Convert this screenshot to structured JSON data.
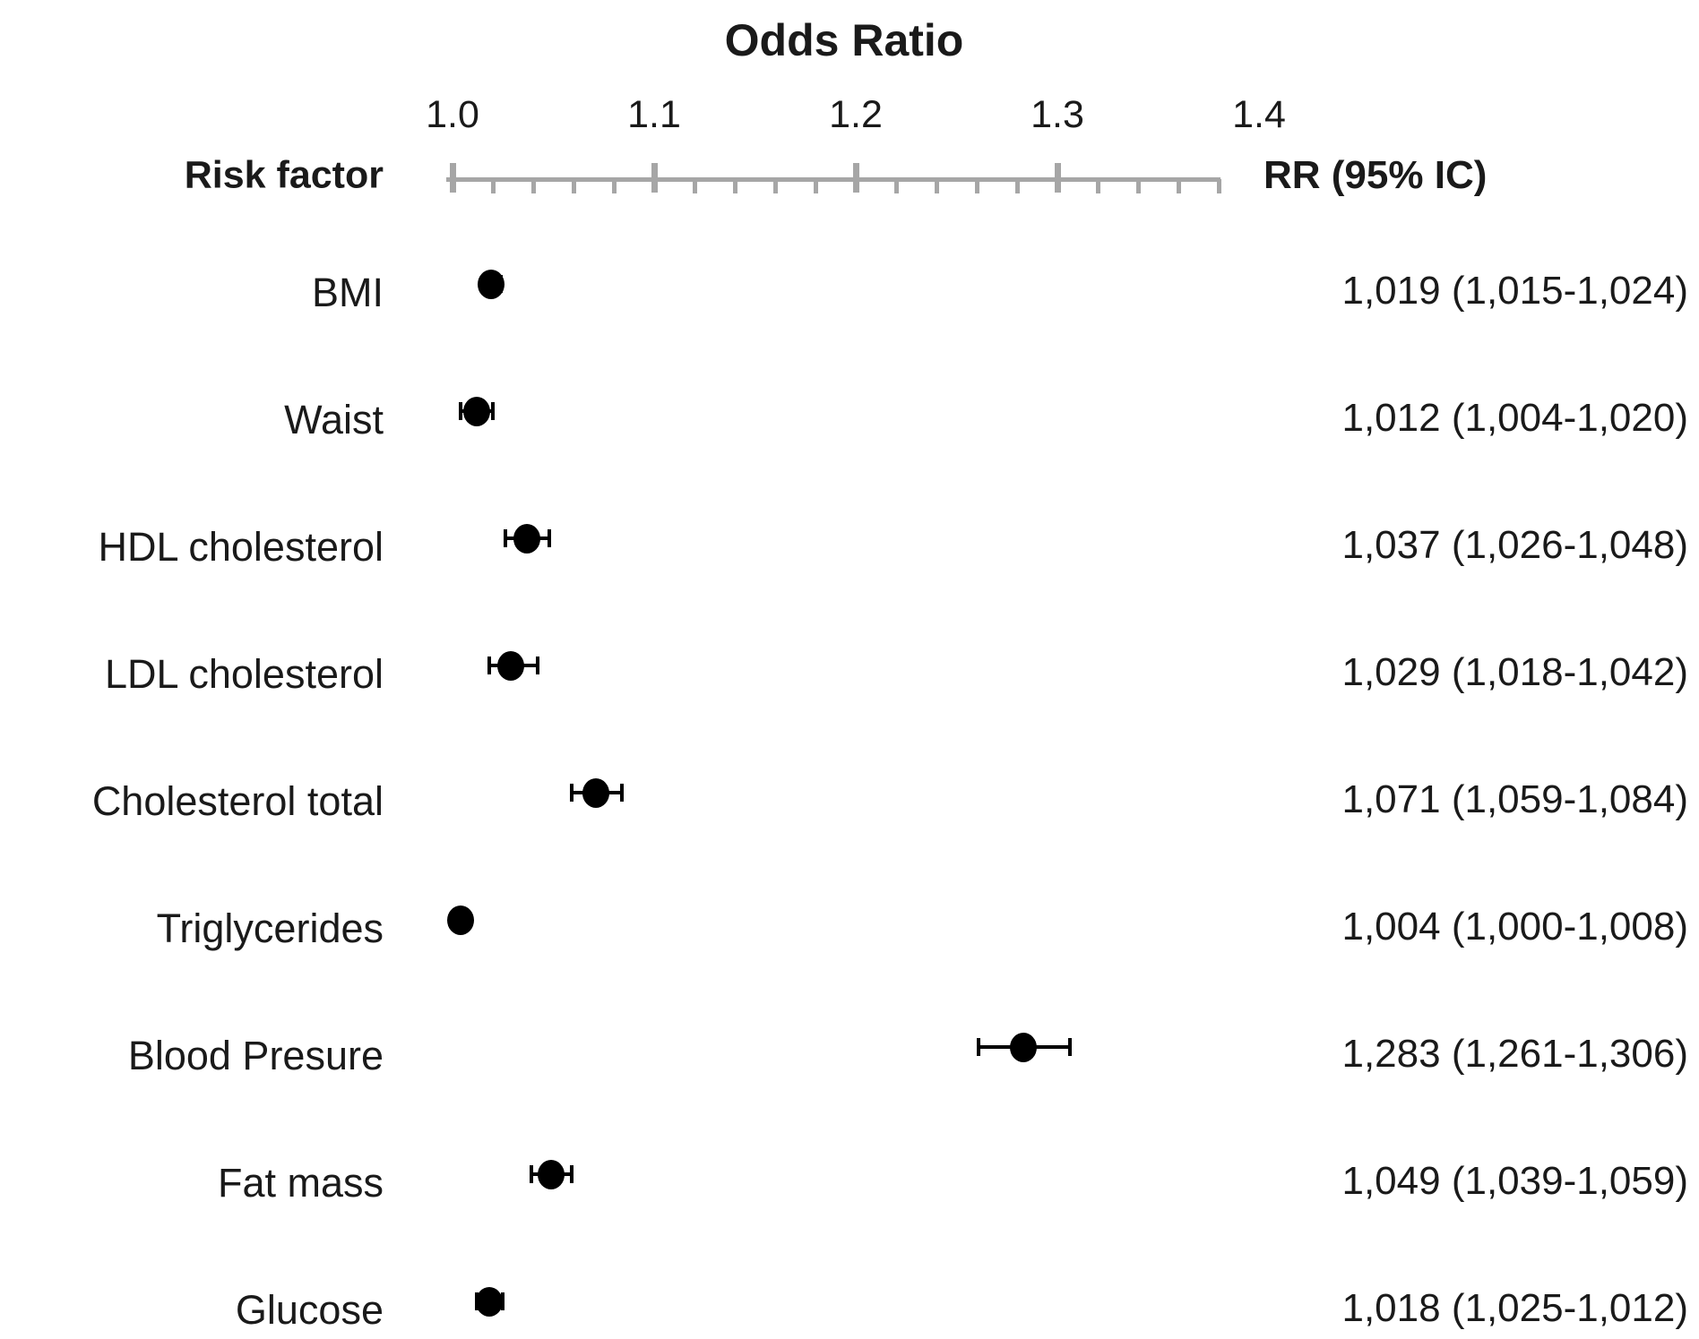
{
  "chart_data": {
    "type": "scatter",
    "title": "Odds Ratio",
    "col_header_left": "Risk factor",
    "col_header_right": "RR (95% IC)",
    "x_axis": {
      "min": 1.0,
      "max": 1.4,
      "major_step": 0.1,
      "minor_step": 0.02,
      "tick_labels": [
        "1.0",
        "1.1",
        "1.2",
        "1.3",
        "1.4"
      ],
      "grid": false
    },
    "legend": "none",
    "rows": [
      {
        "label": "BMI",
        "or": 1.019,
        "ci_low": 1.015,
        "ci_high": 1.024,
        "rr_text": "1,019 (1,015-1,024)"
      },
      {
        "label": "Waist",
        "or": 1.012,
        "ci_low": 1.004,
        "ci_high": 1.02,
        "rr_text": "1,012 (1,004-1,020)"
      },
      {
        "label": "HDL cholesterol",
        "or": 1.037,
        "ci_low": 1.026,
        "ci_high": 1.048,
        "rr_text": "1,037 (1,026-1,048)"
      },
      {
        "label": "LDL cholesterol",
        "or": 1.029,
        "ci_low": 1.018,
        "ci_high": 1.042,
        "rr_text": "1,029 (1,018-1,042)"
      },
      {
        "label": "Cholesterol total",
        "or": 1.071,
        "ci_low": 1.059,
        "ci_high": 1.084,
        "rr_text": "1,071 (1,059-1,084)"
      },
      {
        "label": "Triglycerides",
        "or": 1.004,
        "ci_low": 1.0,
        "ci_high": 1.008,
        "rr_text": "1,004 (1,000-1,008)"
      },
      {
        "label": "Blood Presure",
        "or": 1.283,
        "ci_low": 1.261,
        "ci_high": 1.306,
        "rr_text": "1,283 (1,261-1,306)"
      },
      {
        "label": "Fat mass",
        "or": 1.049,
        "ci_low": 1.039,
        "ci_high": 1.059,
        "rr_text": "1,049 (1,039-1,059)"
      },
      {
        "label": "Glucose",
        "or": 1.018,
        "ci_low": 1.012,
        "ci_high": 1.025,
        "rr_text": "1,018 (1,025-1,012)"
      }
    ],
    "colors": {
      "axis": "#a6a6a6",
      "marker": "#000000",
      "text": "#1a1a1a",
      "background": "#ffffff"
    }
  }
}
